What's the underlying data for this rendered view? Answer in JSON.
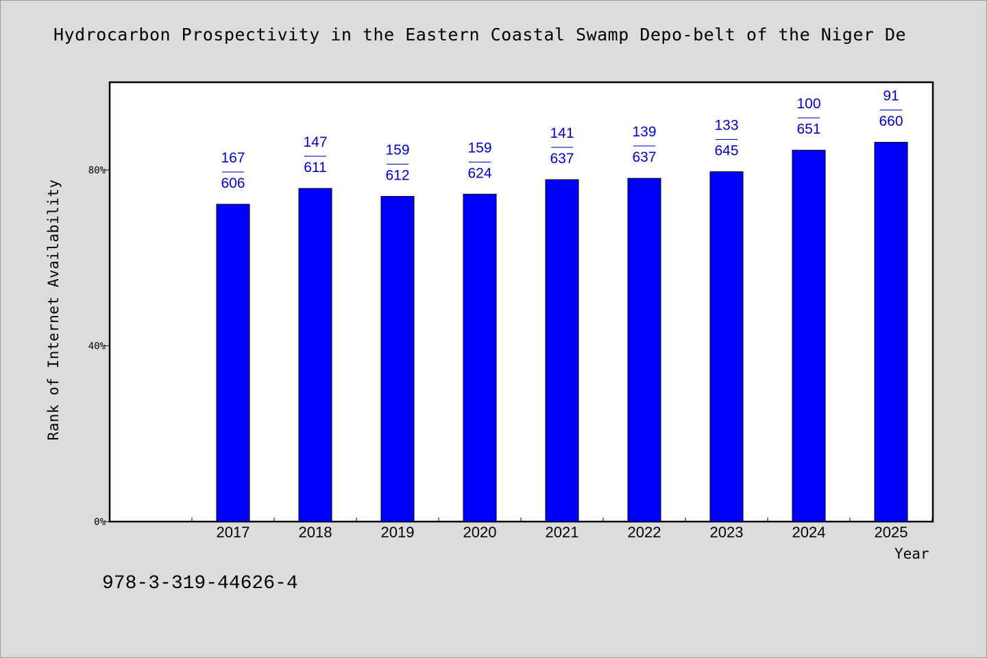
{
  "chart_data": {
    "type": "bar",
    "title": "Hydrocarbon Prospectivity in the Eastern Coastal Swamp Depo-belt of the Niger De",
    "xlabel": "Year",
    "ylabel": "Rank of Internet Availability",
    "categories": [
      "2017",
      "2018",
      "2019",
      "2020",
      "2021",
      "2022",
      "2023",
      "2024",
      "2025"
    ],
    "values": [
      72.2,
      75.8,
      74.0,
      74.5,
      77.8,
      78.1,
      79.6,
      84.5,
      86.3
    ],
    "value_unit": "%",
    "ylim": [
      0,
      100
    ],
    "yticks": [
      0,
      40,
      80
    ],
    "ytick_labels": [
      "0%",
      "40%",
      "80%"
    ],
    "data_labels": [
      [
        "167",
        "606"
      ],
      [
        "147",
        "611"
      ],
      [
        "159",
        "612"
      ],
      [
        "159",
        "624"
      ],
      [
        "141",
        "637"
      ],
      [
        "139",
        "637"
      ],
      [
        "133",
        "645"
      ],
      [
        "100",
        "651"
      ],
      [
        "91",
        "660"
      ]
    ],
    "label_separator": "——",
    "bar_color": "#0000ff",
    "label_color": "#0000cc",
    "grid": false,
    "legend": "none"
  },
  "footnote": "978-3-319-44626-4"
}
